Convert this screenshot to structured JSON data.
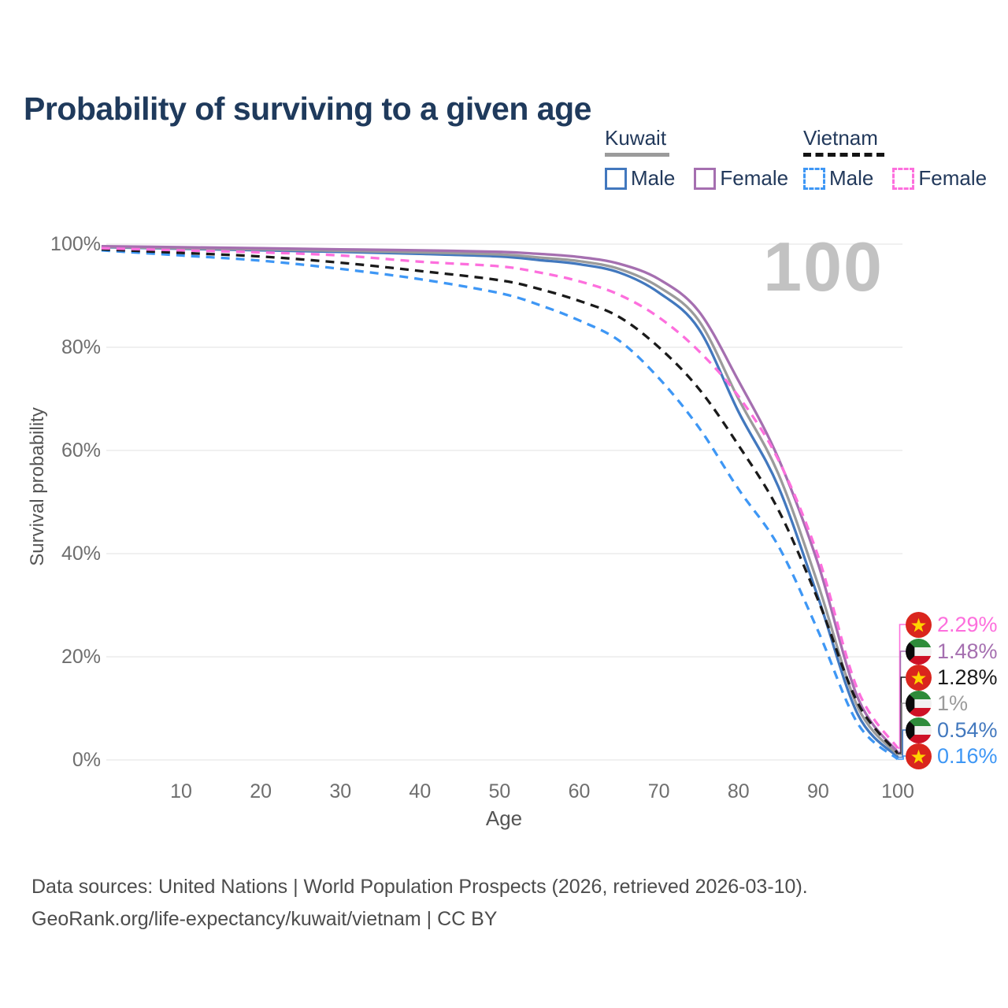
{
  "page": {
    "title": "Probability of surviving to a given age",
    "watermark": "100"
  },
  "legend": {
    "groups": [
      {
        "name": "Kuwait",
        "line_style": "solid",
        "underline_color": "#9b9b9b",
        "items": [
          {
            "label": "Male",
            "color": "#4278be",
            "dashed": false
          },
          {
            "label": "Female",
            "color": "#a56fb0",
            "dashed": false
          }
        ]
      },
      {
        "name": "Vietnam",
        "line_style": "dashed",
        "underline_color": "#141414",
        "items": [
          {
            "label": "Male",
            "color": "#3e97f5",
            "dashed": true
          },
          {
            "label": "Female",
            "color": "#fd6fdd",
            "dashed": true
          }
        ]
      }
    ]
  },
  "chart_data": {
    "type": "line",
    "title": "Probability of surviving to a given age",
    "xlabel": "Age",
    "ylabel": "Survival probability",
    "xlim": [
      0,
      100
    ],
    "ylim": [
      0,
      100
    ],
    "grid": "horizontal",
    "x_ticks": [
      10,
      20,
      30,
      40,
      50,
      60,
      70,
      80,
      90,
      100
    ],
    "y_ticks": [
      0,
      20,
      40,
      60,
      80,
      100
    ],
    "y_tick_labels": [
      "0%",
      "20%",
      "40%",
      "60%",
      "80%",
      "100%"
    ],
    "ages": [
      0,
      10,
      20,
      30,
      40,
      50,
      55,
      60,
      65,
      70,
      75,
      80,
      85,
      90,
      95,
      100
    ],
    "series": [
      {
        "name": "Kuwait Male",
        "country": "Kuwait",
        "sex": "Male",
        "color": "#4278be",
        "dashed": false,
        "values": [
          99.4,
          99.1,
          98.8,
          98.5,
          98.1,
          97.6,
          96.9,
          96.1,
          94.5,
          90.6,
          83.6,
          67.5,
          53.0,
          31.5,
          8.8,
          0.54
        ]
      },
      {
        "name": "Kuwait Both sexes",
        "country": "Kuwait",
        "sex": "Both",
        "color": "#9b9b9b",
        "dashed": false,
        "values": [
          99.5,
          99.2,
          99.0,
          98.7,
          98.4,
          98.0,
          97.4,
          96.7,
          95.2,
          91.7,
          85.2,
          70.0,
          55.5,
          34.0,
          10.2,
          1.0
        ]
      },
      {
        "name": "Kuwait Female",
        "country": "Kuwait",
        "sex": "Female",
        "color": "#a56fb0",
        "dashed": false,
        "values": [
          99.6,
          99.4,
          99.2,
          99.0,
          98.8,
          98.5,
          98.1,
          97.5,
          96.2,
          93.2,
          87.0,
          73.5,
          58.5,
          38.0,
          12.0,
          1.48
        ]
      },
      {
        "name": "Vietnam Male",
        "country": "Vietnam",
        "sex": "Male",
        "color": "#3e97f5",
        "dashed": true,
        "values": [
          98.8,
          97.8,
          96.8,
          95.2,
          93.2,
          90.5,
          88.2,
          85.2,
          81.3,
          74.0,
          64.5,
          52.5,
          41.5,
          25.0,
          7.0,
          0.16
        ]
      },
      {
        "name": "Vietnam Both sexes",
        "country": "Vietnam",
        "sex": "Both",
        "color": "#1a1a1a",
        "dashed": true,
        "values": [
          99.0,
          98.3,
          97.6,
          96.4,
          94.8,
          93.0,
          91.3,
          89.0,
          85.9,
          80.0,
          72.0,
          61.0,
          48.5,
          31.0,
          11.0,
          1.28
        ]
      },
      {
        "name": "Vietnam Female",
        "country": "Vietnam",
        "sex": "Female",
        "color": "#fd6fdd",
        "dashed": true,
        "values": [
          99.2,
          98.8,
          98.4,
          97.8,
          96.6,
          95.7,
          94.5,
          92.8,
          90.2,
          85.8,
          79.3,
          70.5,
          58.2,
          39.5,
          13.5,
          2.29
        ]
      }
    ],
    "end_labels": [
      {
        "text": "2.29%",
        "flag": "vietnam",
        "color": "#fd6fdd",
        "value": 2.29
      },
      {
        "text": "1.48%",
        "flag": "kuwait",
        "color": "#a56fb0",
        "value": 1.48
      },
      {
        "text": "1.28%",
        "flag": "vietnam",
        "color": "#1a1a1a",
        "value": 1.28
      },
      {
        "text": "1%",
        "flag": "kuwait",
        "color": "#9b9b9b",
        "value": 1.0
      },
      {
        "text": "0.54%",
        "flag": "kuwait",
        "color": "#4278be",
        "value": 0.54
      },
      {
        "text": "0.16%",
        "flag": "vietnam",
        "color": "#3e97f5",
        "value": 0.16
      }
    ]
  },
  "colors": {
    "grid": "#e8e8e8",
    "axis_text": "#6e6e6e",
    "flag_vietnam_red": "#da251d",
    "flag_vietnam_star": "#ffd400",
    "flag_kuwait_green": "#2e8b3a",
    "flag_kuwait_white": "#f2f2f2",
    "flag_kuwait_red": "#ce1126",
    "flag_kuwait_black": "#0a0a0a"
  },
  "footer": {
    "line1": "Data sources: United Nations | World Population Prospects (2026, retrieved 2026-03-10).",
    "line2": "GeoRank.org/life-expectancy/kuwait/vietnam | CC BY"
  }
}
